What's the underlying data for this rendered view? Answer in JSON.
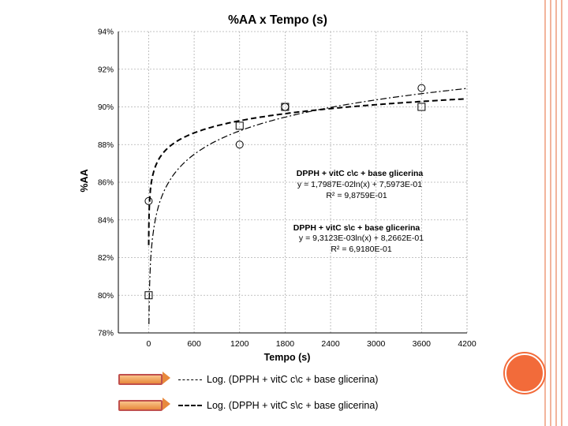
{
  "chart_data": {
    "type": "scatter",
    "title": "%AA  x  Tempo (s)",
    "xlabel": "Tempo (s)",
    "ylabel": "%AA",
    "xlim": [
      -400,
      4200
    ],
    "ylim": [
      78,
      94
    ],
    "x_ticks": [
      0,
      600,
      1200,
      1800,
      2400,
      3000,
      3600,
      4200
    ],
    "y_ticks": [
      78,
      80,
      82,
      84,
      86,
      88,
      90,
      92,
      94
    ],
    "y_tick_labels": [
      "78%",
      "80%",
      "82%",
      "84%",
      "86%",
      "88%",
      "90%",
      "92%",
      "94%"
    ],
    "grid": true,
    "series": [
      {
        "name": "DPPH + vitC c\\c + base glicerina",
        "marker": "circle",
        "line_style": "dash-dot",
        "x": [
          0,
          1200,
          1800,
          3600
        ],
        "y": [
          85,
          88,
          90,
          91
        ],
        "fit": {
          "type": "log",
          "a": 0.017987,
          "b": 0.75973
        }
      },
      {
        "name": "DPPH + vitC s\\c + base glicerina",
        "marker": "square",
        "line_style": "dashed",
        "x": [
          0,
          1200,
          1800,
          3600
        ],
        "y": [
          80,
          89,
          90,
          90
        ],
        "fit": {
          "type": "log",
          "a": 0.0093123,
          "b": 0.82662
        }
      }
    ],
    "annotations": [
      {
        "title": "DPPH + vitC c\\c + base glicerina",
        "equation": "y = 1,7987E-02ln(x)  + 7,5973E-01",
        "r2": "R² = 9,8759E-01"
      },
      {
        "title": "DPPH + vitC s\\c + base glicerina",
        "equation": "y = 9,3123E-03ln(x)  + 8,2662E-01",
        "r2": "R² = 6,9180E-01"
      }
    ],
    "legend": [
      "Log. (DPPH + vitC c\\c + base glicerina)",
      "Log. (DPPH + vitC s\\c + base glicerina)"
    ],
    "legend_position": "bottom"
  }
}
